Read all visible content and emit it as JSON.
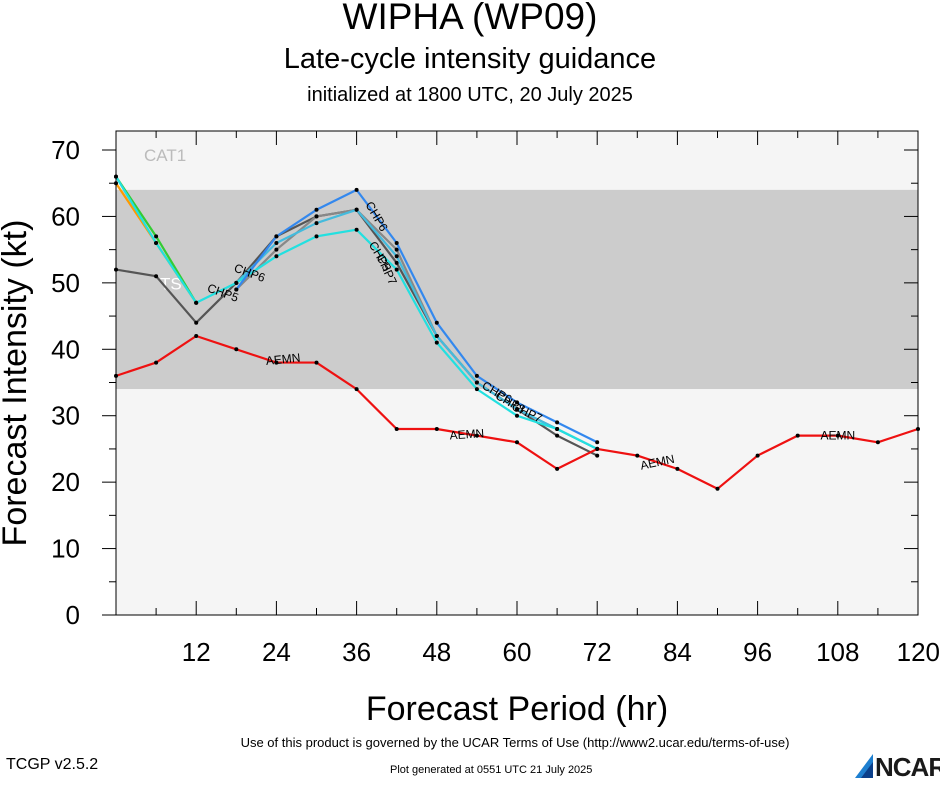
{
  "header": {
    "title": "WIPHA (WP09)",
    "subtitle": "Late-cycle intensity guidance",
    "init_line": "initialized at 1800 UTC, 20 July 2025"
  },
  "footer": {
    "terms": "Use of this product is governed by the UCAR Terms of Use (http://www2.ucar.edu/terms-of-use)",
    "version": "TCGP v2.5.2",
    "generated": "Plot generated at 0551 UTC   21 July 2025",
    "logo_text": "NCAR"
  },
  "chart_data": {
    "type": "line",
    "xlabel": "Forecast Period (hr)",
    "ylabel": "Forecast Intensity (kt)",
    "xlim": [
      0,
      120
    ],
    "ylim": [
      0,
      70
    ],
    "x_ticks": [
      12,
      24,
      36,
      48,
      60,
      72,
      84,
      96,
      108,
      120
    ],
    "y_ticks": [
      0,
      10,
      20,
      30,
      40,
      50,
      60,
      70
    ],
    "bands": [
      {
        "label": "CAT1",
        "from": 64,
        "to": 73,
        "color": "#f5f5f5"
      },
      {
        "label": "TS",
        "from": 34,
        "to": 64,
        "color": "#cccccc"
      },
      {
        "label": "",
        "from": 0,
        "to": 34,
        "color": "#f5f5f5"
      }
    ],
    "series": [
      {
        "name": "AEMN",
        "color": "#ee1111",
        "x": [
          0,
          6,
          12,
          18,
          24,
          30,
          36,
          42,
          48,
          54,
          60,
          66,
          72,
          78,
          84,
          90,
          96,
          102,
          108,
          114,
          120
        ],
        "y": [
          36,
          38,
          42,
          40,
          38,
          38,
          34,
          28,
          28,
          27,
          26,
          22,
          25,
          24,
          22,
          19,
          24,
          27,
          27,
          26,
          28
        ],
        "labels": [
          {
            "x": 25,
            "y": 38.5,
            "angle": 6
          },
          {
            "x": 52.5,
            "y": 27.2,
            "angle": 4
          },
          {
            "x": 81,
            "y": 23,
            "angle": 12
          },
          {
            "x": 108,
            "y": 27,
            "angle": 0
          }
        ]
      },
      {
        "name": "",
        "color": "#555555",
        "x": [
          0,
          6,
          12,
          18,
          24,
          30,
          36,
          42,
          48,
          54,
          60,
          66,
          72
        ],
        "y": [
          52,
          51,
          44,
          50,
          57,
          60,
          61,
          53,
          42,
          35,
          31,
          27,
          24
        ],
        "labels": []
      },
      {
        "name": "CHP6",
        "color": "#3388ee",
        "x": [
          18,
          24,
          30,
          36,
          42,
          48,
          54,
          60,
          66,
          72
        ],
        "y": [
          49,
          57,
          61,
          64,
          56,
          44,
          36,
          32,
          29,
          26
        ],
        "labels": [
          {
            "x": 39,
            "y": 60,
            "angle": -60
          },
          {
            "x": 57,
            "y": 33.5,
            "angle": -30
          }
        ]
      },
      {
        "name": "",
        "color": "#44bbdd",
        "x": [
          18,
          24,
          30,
          36,
          42,
          48,
          54,
          60,
          66,
          72
        ],
        "y": [
          50,
          56,
          59,
          61,
          54,
          42,
          35,
          31,
          28,
          25
        ],
        "labels": []
      },
      {
        "name": "",
        "color": "#888888",
        "x": [
          18,
          24,
          30,
          36,
          42,
          48,
          54,
          60,
          66,
          72
        ],
        "y": [
          49,
          55,
          60,
          61,
          55,
          42,
          35,
          31,
          28,
          25
        ],
        "labels": []
      },
      {
        "name": "CHP7",
        "color": "#22e0e0",
        "x": [
          0,
          6,
          12,
          18,
          24,
          30,
          36,
          42,
          48,
          54,
          60,
          66,
          72
        ],
        "y": [
          66,
          56,
          47,
          50,
          54,
          57,
          58,
          52,
          41,
          34,
          30,
          28,
          25
        ],
        "labels": [
          {
            "x": 40.5,
            "y": 52,
            "angle": -65
          },
          {
            "x": 61.5,
            "y": 30.5,
            "angle": -25
          }
        ]
      },
      {
        "name": "",
        "color": "#33cc33",
        "x": [
          0,
          6,
          12
        ],
        "y": [
          66,
          57,
          47
        ],
        "labels": []
      },
      {
        "name": "",
        "color": "#ff9900",
        "x": [
          0,
          6,
          12
        ],
        "y": [
          65,
          56,
          47
        ],
        "labels": []
      }
    ],
    "annotations": [
      {
        "text": "CHP5",
        "x": 16,
        "y": 48.5,
        "angle": -20
      },
      {
        "text": "CHP6",
        "x": 20,
        "y": 51.5,
        "angle": -20
      },
      {
        "text": "CHP5",
        "x": 39.5,
        "y": 54,
        "angle": -60
      },
      {
        "text": "CHP8",
        "x": 59,
        "y": 32,
        "angle": -30
      }
    ]
  }
}
